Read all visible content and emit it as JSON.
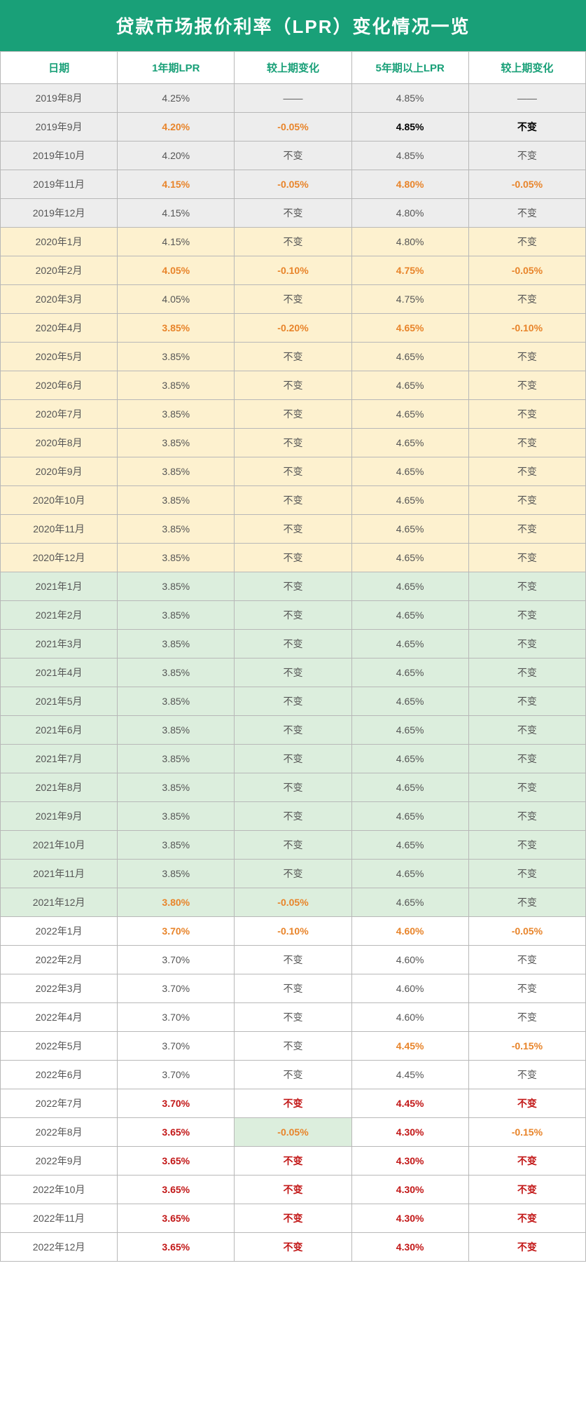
{
  "title": "贷款市场报价利率（LPR）变化情况一览",
  "columns": [
    "日期",
    "1年期LPR",
    "较上期变化",
    "5年期以上LPR",
    "较上期变化"
  ],
  "year_row_bg": {
    "2019": "#ededed",
    "2020": "#fdf1cf",
    "2021": "#dceedd",
    "2022": "#ffffff"
  },
  "text_color_default": "#555555",
  "rows": [
    {
      "y": "2019",
      "cells": [
        {
          "t": "2019年8月"
        },
        {
          "t": "4.25%"
        },
        {
          "t": "——"
        },
        {
          "t": "4.85%"
        },
        {
          "t": "——"
        }
      ]
    },
    {
      "y": "2019",
      "cells": [
        {
          "t": "2019年9月"
        },
        {
          "t": "4.20%",
          "s": "hl-orange"
        },
        {
          "t": "-0.05%",
          "s": "hl-orange"
        },
        {
          "t": "4.85%",
          "s": "hl-black"
        },
        {
          "t": "不变",
          "s": "hl-black"
        }
      ]
    },
    {
      "y": "2019",
      "cells": [
        {
          "t": "2019年10月"
        },
        {
          "t": "4.20%"
        },
        {
          "t": "不变"
        },
        {
          "t": "4.85%"
        },
        {
          "t": "不变"
        }
      ]
    },
    {
      "y": "2019",
      "cells": [
        {
          "t": "2019年11月"
        },
        {
          "t": "4.15%",
          "s": "hl-orange"
        },
        {
          "t": "-0.05%",
          "s": "hl-orange"
        },
        {
          "t": "4.80%",
          "s": "hl-orange"
        },
        {
          "t": "-0.05%",
          "s": "hl-orange"
        }
      ]
    },
    {
      "y": "2019",
      "cells": [
        {
          "t": "2019年12月"
        },
        {
          "t": "4.15%"
        },
        {
          "t": "不变"
        },
        {
          "t": "4.80%"
        },
        {
          "t": "不变"
        }
      ]
    },
    {
      "y": "2020",
      "cells": [
        {
          "t": "2020年1月"
        },
        {
          "t": "4.15%"
        },
        {
          "t": "不变"
        },
        {
          "t": "4.80%"
        },
        {
          "t": "不变"
        }
      ]
    },
    {
      "y": "2020",
      "cells": [
        {
          "t": "2020年2月"
        },
        {
          "t": "4.05%",
          "s": "hl-orange"
        },
        {
          "t": "-0.10%",
          "s": "hl-orange"
        },
        {
          "t": "4.75%",
          "s": "hl-orange"
        },
        {
          "t": "-0.05%",
          "s": "hl-orange"
        }
      ]
    },
    {
      "y": "2020",
      "cells": [
        {
          "t": "2020年3月"
        },
        {
          "t": "4.05%"
        },
        {
          "t": "不变"
        },
        {
          "t": "4.75%"
        },
        {
          "t": "不变"
        }
      ]
    },
    {
      "y": "2020",
      "cells": [
        {
          "t": "2020年4月"
        },
        {
          "t": "3.85%",
          "s": "hl-orange"
        },
        {
          "t": "-0.20%",
          "s": "hl-orange"
        },
        {
          "t": "4.65%",
          "s": "hl-orange"
        },
        {
          "t": "-0.10%",
          "s": "hl-orange"
        }
      ]
    },
    {
      "y": "2020",
      "cells": [
        {
          "t": "2020年5月"
        },
        {
          "t": "3.85%"
        },
        {
          "t": "不变"
        },
        {
          "t": "4.65%"
        },
        {
          "t": "不变"
        }
      ]
    },
    {
      "y": "2020",
      "cells": [
        {
          "t": "2020年6月"
        },
        {
          "t": "3.85%"
        },
        {
          "t": "不变"
        },
        {
          "t": "4.65%"
        },
        {
          "t": "不变"
        }
      ]
    },
    {
      "y": "2020",
      "cells": [
        {
          "t": "2020年7月"
        },
        {
          "t": "3.85%"
        },
        {
          "t": "不变"
        },
        {
          "t": "4.65%"
        },
        {
          "t": "不变"
        }
      ]
    },
    {
      "y": "2020",
      "cells": [
        {
          "t": "2020年8月"
        },
        {
          "t": "3.85%"
        },
        {
          "t": "不变"
        },
        {
          "t": "4.65%"
        },
        {
          "t": "不变"
        }
      ]
    },
    {
      "y": "2020",
      "cells": [
        {
          "t": "2020年9月"
        },
        {
          "t": "3.85%"
        },
        {
          "t": "不变"
        },
        {
          "t": "4.65%"
        },
        {
          "t": "不变"
        }
      ]
    },
    {
      "y": "2020",
      "cells": [
        {
          "t": "2020年10月"
        },
        {
          "t": "3.85%"
        },
        {
          "t": "不变"
        },
        {
          "t": "4.65%"
        },
        {
          "t": "不变"
        }
      ]
    },
    {
      "y": "2020",
      "cells": [
        {
          "t": "2020年11月"
        },
        {
          "t": "3.85%"
        },
        {
          "t": "不变"
        },
        {
          "t": "4.65%"
        },
        {
          "t": "不变"
        }
      ]
    },
    {
      "y": "2020",
      "cells": [
        {
          "t": "2020年12月"
        },
        {
          "t": "3.85%"
        },
        {
          "t": "不变"
        },
        {
          "t": "4.65%"
        },
        {
          "t": "不变"
        }
      ]
    },
    {
      "y": "2021",
      "cells": [
        {
          "t": "2021年1月"
        },
        {
          "t": "3.85%"
        },
        {
          "t": "不变"
        },
        {
          "t": "4.65%"
        },
        {
          "t": "不变"
        }
      ]
    },
    {
      "y": "2021",
      "cells": [
        {
          "t": "2021年2月"
        },
        {
          "t": "3.85%"
        },
        {
          "t": "不变"
        },
        {
          "t": "4.65%"
        },
        {
          "t": "不变"
        }
      ]
    },
    {
      "y": "2021",
      "cells": [
        {
          "t": "2021年3月"
        },
        {
          "t": "3.85%"
        },
        {
          "t": "不变"
        },
        {
          "t": "4.65%"
        },
        {
          "t": "不变"
        }
      ]
    },
    {
      "y": "2021",
      "cells": [
        {
          "t": "2021年4月"
        },
        {
          "t": "3.85%"
        },
        {
          "t": "不变"
        },
        {
          "t": "4.65%"
        },
        {
          "t": "不变"
        }
      ]
    },
    {
      "y": "2021",
      "cells": [
        {
          "t": "2021年5月"
        },
        {
          "t": "3.85%"
        },
        {
          "t": "不变"
        },
        {
          "t": "4.65%"
        },
        {
          "t": "不变"
        }
      ]
    },
    {
      "y": "2021",
      "cells": [
        {
          "t": "2021年6月"
        },
        {
          "t": "3.85%"
        },
        {
          "t": "不变"
        },
        {
          "t": "4.65%"
        },
        {
          "t": "不变"
        }
      ]
    },
    {
      "y": "2021",
      "cells": [
        {
          "t": "2021年7月"
        },
        {
          "t": "3.85%"
        },
        {
          "t": "不变"
        },
        {
          "t": "4.65%"
        },
        {
          "t": "不变"
        }
      ]
    },
    {
      "y": "2021",
      "cells": [
        {
          "t": "2021年8月"
        },
        {
          "t": "3.85%"
        },
        {
          "t": "不变"
        },
        {
          "t": "4.65%"
        },
        {
          "t": "不变"
        }
      ]
    },
    {
      "y": "2021",
      "cells": [
        {
          "t": "2021年9月"
        },
        {
          "t": "3.85%"
        },
        {
          "t": "不变"
        },
        {
          "t": "4.65%"
        },
        {
          "t": "不变"
        }
      ]
    },
    {
      "y": "2021",
      "cells": [
        {
          "t": "2021年10月"
        },
        {
          "t": "3.85%"
        },
        {
          "t": "不变"
        },
        {
          "t": "4.65%"
        },
        {
          "t": "不变"
        }
      ]
    },
    {
      "y": "2021",
      "cells": [
        {
          "t": "2021年11月"
        },
        {
          "t": "3.85%"
        },
        {
          "t": "不变"
        },
        {
          "t": "4.65%"
        },
        {
          "t": "不变"
        }
      ]
    },
    {
      "y": "2021",
      "cells": [
        {
          "t": "2021年12月"
        },
        {
          "t": "3.80%",
          "s": "hl-orange"
        },
        {
          "t": "-0.05%",
          "s": "hl-orange"
        },
        {
          "t": "4.65%"
        },
        {
          "t": "不变"
        }
      ]
    },
    {
      "y": "2022",
      "cells": [
        {
          "t": "2022年1月"
        },
        {
          "t": "3.70%",
          "s": "hl-orange"
        },
        {
          "t": "-0.10%",
          "s": "hl-orange"
        },
        {
          "t": "4.60%",
          "s": "hl-orange"
        },
        {
          "t": "-0.05%",
          "s": "hl-orange"
        }
      ]
    },
    {
      "y": "2022",
      "cells": [
        {
          "t": "2022年2月"
        },
        {
          "t": "3.70%"
        },
        {
          "t": "不变"
        },
        {
          "t": "4.60%"
        },
        {
          "t": "不变"
        }
      ]
    },
    {
      "y": "2022",
      "cells": [
        {
          "t": "2022年3月"
        },
        {
          "t": "3.70%"
        },
        {
          "t": "不变"
        },
        {
          "t": "4.60%"
        },
        {
          "t": "不变"
        }
      ]
    },
    {
      "y": "2022",
      "cells": [
        {
          "t": "2022年4月"
        },
        {
          "t": "3.70%"
        },
        {
          "t": "不变"
        },
        {
          "t": "4.60%"
        },
        {
          "t": "不变"
        }
      ]
    },
    {
      "y": "2022",
      "cells": [
        {
          "t": "2022年5月"
        },
        {
          "t": "3.70%"
        },
        {
          "t": "不变"
        },
        {
          "t": "4.45%",
          "s": "hl-orange"
        },
        {
          "t": "-0.15%",
          "s": "hl-orange"
        }
      ]
    },
    {
      "y": "2022",
      "cells": [
        {
          "t": "2022年6月"
        },
        {
          "t": "3.70%"
        },
        {
          "t": "不变"
        },
        {
          "t": "4.45%"
        },
        {
          "t": "不变"
        }
      ]
    },
    {
      "y": "2022",
      "cells": [
        {
          "t": "2022年7月"
        },
        {
          "t": "3.70%",
          "s": "hl-red"
        },
        {
          "t": "不变",
          "s": "hl-red"
        },
        {
          "t": "4.45%",
          "s": "hl-red"
        },
        {
          "t": "不变",
          "s": "hl-red"
        }
      ]
    },
    {
      "y": "2022",
      "cells": [
        {
          "t": "2022年8月"
        },
        {
          "t": "3.65%",
          "s": "hl-red"
        },
        {
          "t": "-0.05%",
          "s": "hl-orange",
          "bg": "cell-green"
        },
        {
          "t": "4.30%",
          "s": "hl-red"
        },
        {
          "t": "-0.15%",
          "s": "hl-orange"
        }
      ]
    },
    {
      "y": "2022",
      "cells": [
        {
          "t": "2022年9月"
        },
        {
          "t": "3.65%",
          "s": "hl-red"
        },
        {
          "t": "不变",
          "s": "hl-red"
        },
        {
          "t": "4.30%",
          "s": "hl-red"
        },
        {
          "t": "不变",
          "s": "hl-red"
        }
      ]
    },
    {
      "y": "2022",
      "cells": [
        {
          "t": "2022年10月"
        },
        {
          "t": "3.65%",
          "s": "hl-red"
        },
        {
          "t": "不变",
          "s": "hl-red"
        },
        {
          "t": "4.30%",
          "s": "hl-red"
        },
        {
          "t": "不变",
          "s": "hl-red"
        }
      ]
    },
    {
      "y": "2022",
      "cells": [
        {
          "t": "2022年11月"
        },
        {
          "t": "3.65%",
          "s": "hl-red"
        },
        {
          "t": "不变",
          "s": "hl-red"
        },
        {
          "t": "4.30%",
          "s": "hl-red"
        },
        {
          "t": "不变",
          "s": "hl-red"
        }
      ]
    },
    {
      "y": "2022",
      "cells": [
        {
          "t": "2022年12月"
        },
        {
          "t": "3.65%",
          "s": "hl-red"
        },
        {
          "t": "不变",
          "s": "hl-red"
        },
        {
          "t": "4.30%",
          "s": "hl-red"
        },
        {
          "t": "不变",
          "s": "hl-red"
        }
      ]
    }
  ]
}
